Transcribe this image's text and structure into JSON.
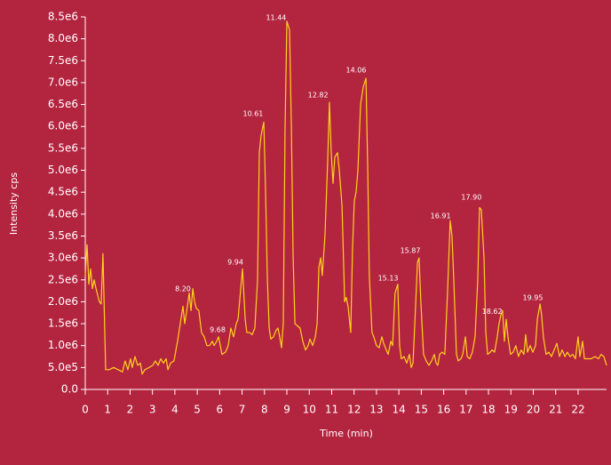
{
  "chart_data": {
    "type": "line",
    "xlabel": "Time (min)",
    "ylabel": "Intensity cps",
    "x": [
      0,
      0.08,
      0.16,
      0.24,
      0.32,
      0.4,
      0.48,
      0.63,
      0.71,
      0.79,
      0.91,
      1.07,
      1.27,
      1.47,
      1.66,
      1.78,
      1.9,
      2.02,
      2.1,
      2.22,
      2.34,
      2.46,
      2.54,
      2.66,
      2.85,
      3.01,
      3.13,
      3.25,
      3.37,
      3.49,
      3.61,
      3.69,
      3.81,
      3.96,
      4.12,
      4.24,
      4.36,
      4.44,
      4.56,
      4.64,
      4.72,
      4.8,
      4.88,
      4.96,
      5.07,
      5.19,
      5.31,
      5.43,
      5.55,
      5.67,
      5.75,
      5.87,
      5.95,
      6.03,
      6.1,
      6.26,
      6.38,
      6.5,
      6.62,
      6.74,
      6.82,
      6.94,
      7.02,
      7.14,
      7.21,
      7.33,
      7.45,
      7.57,
      7.69,
      7.77,
      7.85,
      7.97,
      8.05,
      8.13,
      8.21,
      8.28,
      8.4,
      8.52,
      8.6,
      8.68,
      8.76,
      8.84,
      8.92,
      9.0,
      9.12,
      9.2,
      9.28,
      9.36,
      9.47,
      9.59,
      9.71,
      9.83,
      9.95,
      10.03,
      10.15,
      10.27,
      10.35,
      10.43,
      10.51,
      10.58,
      10.7,
      10.82,
      10.9,
      10.98,
      11.06,
      11.14,
      11.26,
      11.34,
      11.46,
      11.58,
      11.65,
      11.73,
      11.85,
      11.93,
      12.01,
      12.09,
      12.17,
      12.29,
      12.41,
      12.53,
      12.61,
      12.68,
      12.8,
      12.88,
      13.0,
      13.12,
      13.24,
      13.32,
      13.44,
      13.52,
      13.64,
      13.72,
      13.83,
      13.95,
      14.03,
      14.11,
      14.23,
      14.35,
      14.47,
      14.55,
      14.63,
      14.71,
      14.83,
      14.9,
      14.98,
      15.1,
      15.22,
      15.34,
      15.46,
      15.58,
      15.66,
      15.74,
      15.82,
      15.93,
      16.05,
      16.17,
      16.29,
      16.37,
      16.45,
      16.57,
      16.65,
      16.77,
      16.85,
      16.97,
      17.05,
      17.16,
      17.28,
      17.4,
      17.52,
      17.6,
      17.68,
      17.8,
      17.88,
      17.96,
      18.08,
      18.16,
      18.27,
      18.39,
      18.47,
      18.55,
      18.63,
      18.71,
      18.79,
      18.87,
      18.98,
      19.1,
      19.22,
      19.34,
      19.46,
      19.58,
      19.66,
      19.74,
      19.86,
      19.98,
      20.1,
      20.18,
      20.3,
      20.37,
      20.45,
      20.57,
      20.69,
      20.81,
      20.93,
      21.05,
      21.17,
      21.29,
      21.41,
      21.52,
      21.64,
      21.76,
      21.88,
      22.0,
      22.08,
      22.2,
      22.28,
      22.43,
      22.59,
      22.75,
      22.91,
      23.03,
      23.15,
      23.27
    ],
    "series": [
      {
        "color": "#ffd21f",
        "values": [
          2600000.0,
          3300000.0,
          2400000.0,
          2750000.0,
          2300000.0,
          2500000.0,
          2300000.0,
          2000000.0,
          1950000.0,
          3100000.0,
          450000.0,
          450000.0,
          500000.0,
          450000.0,
          400000.0,
          650000.0,
          450000.0,
          700000.0,
          500000.0,
          750000.0,
          550000.0,
          600000.0,
          350000.0,
          450000.0,
          500000.0,
          550000.0,
          650000.0,
          550000.0,
          700000.0,
          600000.0,
          700000.0,
          450000.0,
          600000.0,
          650000.0,
          1100000.0,
          1500000.0,
          1900000.0,
          1500000.0,
          1900000.0,
          2200000.0,
          1800000.0,
          2300000.0,
          2000000.0,
          1850000.0,
          1800000.0,
          1300000.0,
          1200000.0,
          1000000.0,
          1000000.0,
          1100000.0,
          1000000.0,
          1100000.0,
          1200000.0,
          1000000.0,
          800000.0,
          850000.0,
          1000000.0,
          1400000.0,
          1200000.0,
          1500000.0,
          1600000.0,
          2300000.0,
          2750000.0,
          1600000.0,
          1300000.0,
          1300000.0,
          1250000.0,
          1400000.0,
          2500000.0,
          5400000.0,
          5800000.0,
          6100000.0,
          4500000.0,
          2500000.0,
          1400000.0,
          1150000.0,
          1200000.0,
          1350000.0,
          1400000.0,
          1200000.0,
          950000.0,
          1500000.0,
          6000000.0,
          8400000.0,
          8200000.0,
          6000000.0,
          3000000.0,
          1500000.0,
          1450000.0,
          1400000.0,
          1100000.0,
          900000.0,
          1000000.0,
          1150000.0,
          1000000.0,
          1200000.0,
          1500000.0,
          2800000.0,
          3000000.0,
          2600000.0,
          3500000.0,
          5200000.0,
          6550000.0,
          5400000.0,
          4700000.0,
          5300000.0,
          5400000.0,
          5000000.0,
          4200000.0,
          2000000.0,
          2100000.0,
          1900000.0,
          1300000.0,
          3200000.0,
          4300000.0,
          4500000.0,
          5000000.0,
          6500000.0,
          6900000.0,
          7100000.0,
          5000000.0,
          2600000.0,
          1300000.0,
          1200000.0,
          1000000.0,
          950000.0,
          1200000.0,
          1050000.0,
          900000.0,
          800000.0,
          1100000.0,
          1000000.0,
          2200000.0,
          2400000.0,
          1000000.0,
          700000.0,
          750000.0,
          600000.0,
          800000.0,
          500000.0,
          600000.0,
          1500000.0,
          2900000.0,
          3000000.0,
          2000000.0,
          800000.0,
          650000.0,
          550000.0,
          650000.0,
          800000.0,
          600000.0,
          550000.0,
          800000.0,
          850000.0,
          800000.0,
          2200000.0,
          3850000.0,
          3500000.0,
          2500000.0,
          800000.0,
          650000.0,
          700000.0,
          800000.0,
          1200000.0,
          750000.0,
          700000.0,
          850000.0,
          1200000.0,
          2500000.0,
          4150000.0,
          4100000.0,
          3000000.0,
          1300000.0,
          800000.0,
          850000.0,
          900000.0,
          850000.0,
          1200000.0,
          1500000.0,
          1700000.0,
          1800000.0,
          1100000.0,
          1600000.0,
          1200000.0,
          800000.0,
          850000.0,
          1000000.0,
          750000.0,
          900000.0,
          800000.0,
          1250000.0,
          850000.0,
          1000000.0,
          850000.0,
          1000000.0,
          1600000.0,
          1950000.0,
          1700000.0,
          1200000.0,
          800000.0,
          850000.0,
          750000.0,
          900000.0,
          1050000.0,
          750000.0,
          900000.0,
          750000.0,
          850000.0,
          750000.0,
          800000.0,
          700000.0,
          1200000.0,
          750000.0,
          1100000.0,
          700000.0,
          700000.0,
          700000.0,
          750000.0,
          700000.0,
          800000.0,
          750000.0,
          550000.0
        ]
      }
    ],
    "xlim": [
      0,
      23.27
    ],
    "xticks": [
      0,
      1,
      2,
      3,
      4,
      5,
      6,
      7,
      8,
      9,
      10,
      11,
      12,
      13,
      14,
      15,
      16,
      17,
      18,
      19,
      20,
      21,
      22
    ],
    "ylim": [
      0,
      8500000.0
    ],
    "yticks": [
      {
        "value": 0,
        "label": "0.0"
      },
      {
        "value": 500000.0,
        "label": "5.0e5"
      },
      {
        "value": 1000000.0,
        "label": "1.0e6"
      },
      {
        "value": 1500000.0,
        "label": "1.5e6"
      },
      {
        "value": 2000000.0,
        "label": "2.0e6"
      },
      {
        "value": 2500000.0,
        "label": "2.5e6"
      },
      {
        "value": 3000000.0,
        "label": "3.0e6"
      },
      {
        "value": 3500000.0,
        "label": "3.5e6"
      },
      {
        "value": 4000000.0,
        "label": "4.0e6"
      },
      {
        "value": 4500000.0,
        "label": "4.5e6"
      },
      {
        "value": 5000000.0,
        "label": "5.0e6"
      },
      {
        "value": 5500000.0,
        "label": "5.5e6"
      },
      {
        "value": 6000000.0,
        "label": "6.0e6"
      },
      {
        "value": 6500000.0,
        "label": "6.5e6"
      },
      {
        "value": 7000000.0,
        "label": "7.0e6"
      },
      {
        "value": 7500000.0,
        "label": "7.5e6"
      },
      {
        "value": 8000000.0,
        "label": "8.0e6"
      },
      {
        "value": 8500000.0,
        "label": "8.5e6"
      }
    ],
    "annotations": [
      {
        "label": "8.20",
        "x": 4.36,
        "y": 2290000.0
      },
      {
        "label": "9.68",
        "x": 5.91,
        "y": 1360000.0
      },
      {
        "label": "9.94",
        "x": 6.7,
        "y": 2900000.0
      },
      {
        "label": "10.61",
        "x": 7.49,
        "y": 6290000.0
      },
      {
        "label": "11.44",
        "x": 8.52,
        "y": 8480000.0
      },
      {
        "label": "12.82",
        "x": 10.39,
        "y": 6710000.0
      },
      {
        "label": "14.06",
        "x": 12.09,
        "y": 7280000.0
      },
      {
        "label": "15.13",
        "x": 13.52,
        "y": 2540000.0
      },
      {
        "label": "15.87",
        "x": 14.51,
        "y": 3160000.0
      },
      {
        "label": "16.91",
        "x": 15.86,
        "y": 3960000.0
      },
      {
        "label": "17.90",
        "x": 17.24,
        "y": 4380000.0
      },
      {
        "label": "18.62",
        "x": 18.16,
        "y": 1780000.0
      },
      {
        "label": "19.95",
        "x": 19.98,
        "y": 2090000.0
      }
    ]
  }
}
